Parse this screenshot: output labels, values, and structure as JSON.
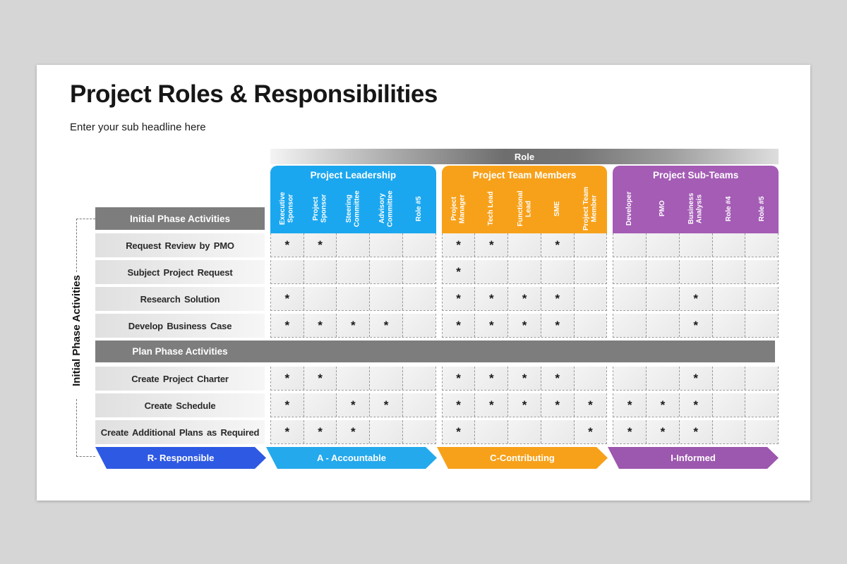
{
  "page": {
    "title": "Project Roles & Responsibilities",
    "subtitle": "Enter your sub headline here"
  },
  "matrix": {
    "role_header": "Role",
    "side_label": "Initial Phase Activities",
    "mark": "*",
    "groups": [
      {
        "name": "Project Leadership",
        "color": "#1BA7EF",
        "columns": [
          "Executive Sponsor",
          "Project Sponsor",
          "Steering Committee",
          "Advisory Committee",
          "Role #5"
        ]
      },
      {
        "name": "Project Team Members",
        "color": "#F7A11A",
        "columns": [
          "Project Manager",
          "Tech Lead",
          "Functional Lead",
          "SME",
          "Project Team Member"
        ]
      },
      {
        "name": "Project Sub-Teams",
        "color": "#A45CB5",
        "columns": [
          "Developer",
          "PMO",
          "Business Analysis",
          "Role #4",
          "Role #5"
        ]
      }
    ],
    "sections": [
      {
        "header": "Initial Phase Activities",
        "full_width": false,
        "rows": [
          {
            "label": "Request Review by PMO",
            "marks": [
              [
                1,
                1,
                0,
                0,
                0
              ],
              [
                1,
                1,
                0,
                1,
                0
              ],
              [
                0,
                0,
                0,
                0,
                0
              ]
            ]
          },
          {
            "label": "Subject Project Request",
            "marks": [
              [
                0,
                0,
                0,
                0,
                0
              ],
              [
                1,
                0,
                0,
                0,
                0
              ],
              [
                0,
                0,
                0,
                0,
                0
              ]
            ]
          },
          {
            "label": "Research Solution",
            "marks": [
              [
                1,
                0,
                0,
                0,
                0
              ],
              [
                1,
                1,
                1,
                1,
                0
              ],
              [
                0,
                0,
                1,
                0,
                0
              ]
            ]
          },
          {
            "label": "Develop Business Case",
            "marks": [
              [
                1,
                1,
                1,
                1,
                0
              ],
              [
                1,
                1,
                1,
                1,
                0
              ],
              [
                0,
                0,
                1,
                0,
                0
              ]
            ]
          }
        ]
      },
      {
        "header": "Plan Phase Activities",
        "full_width": true,
        "rows": [
          {
            "label": "Create Project Charter",
            "marks": [
              [
                1,
                1,
                0,
                0,
                0
              ],
              [
                1,
                1,
                1,
                1,
                0
              ],
              [
                0,
                0,
                1,
                0,
                0
              ]
            ]
          },
          {
            "label": "Create Schedule",
            "marks": [
              [
                1,
                0,
                1,
                1,
                0
              ],
              [
                1,
                1,
                1,
                1,
                1
              ],
              [
                1,
                1,
                1,
                0,
                0
              ]
            ]
          },
          {
            "label": "Create Additional Plans as Required",
            "marks": [
              [
                1,
                1,
                1,
                0,
                0
              ],
              [
                1,
                0,
                0,
                0,
                1
              ],
              [
                1,
                1,
                1,
                0,
                0
              ]
            ]
          }
        ]
      }
    ]
  },
  "legend": [
    {
      "id": "responsible",
      "label": "R- Responsible",
      "color": "#2E59E3"
    },
    {
      "id": "accountable",
      "label": "A - Accountable",
      "color": "#24A9EC"
    },
    {
      "id": "contributing",
      "label": "C-Contributing",
      "color": "#F7A11A"
    },
    {
      "id": "informed",
      "label": "I-Informed",
      "color": "#9C57AE"
    }
  ]
}
